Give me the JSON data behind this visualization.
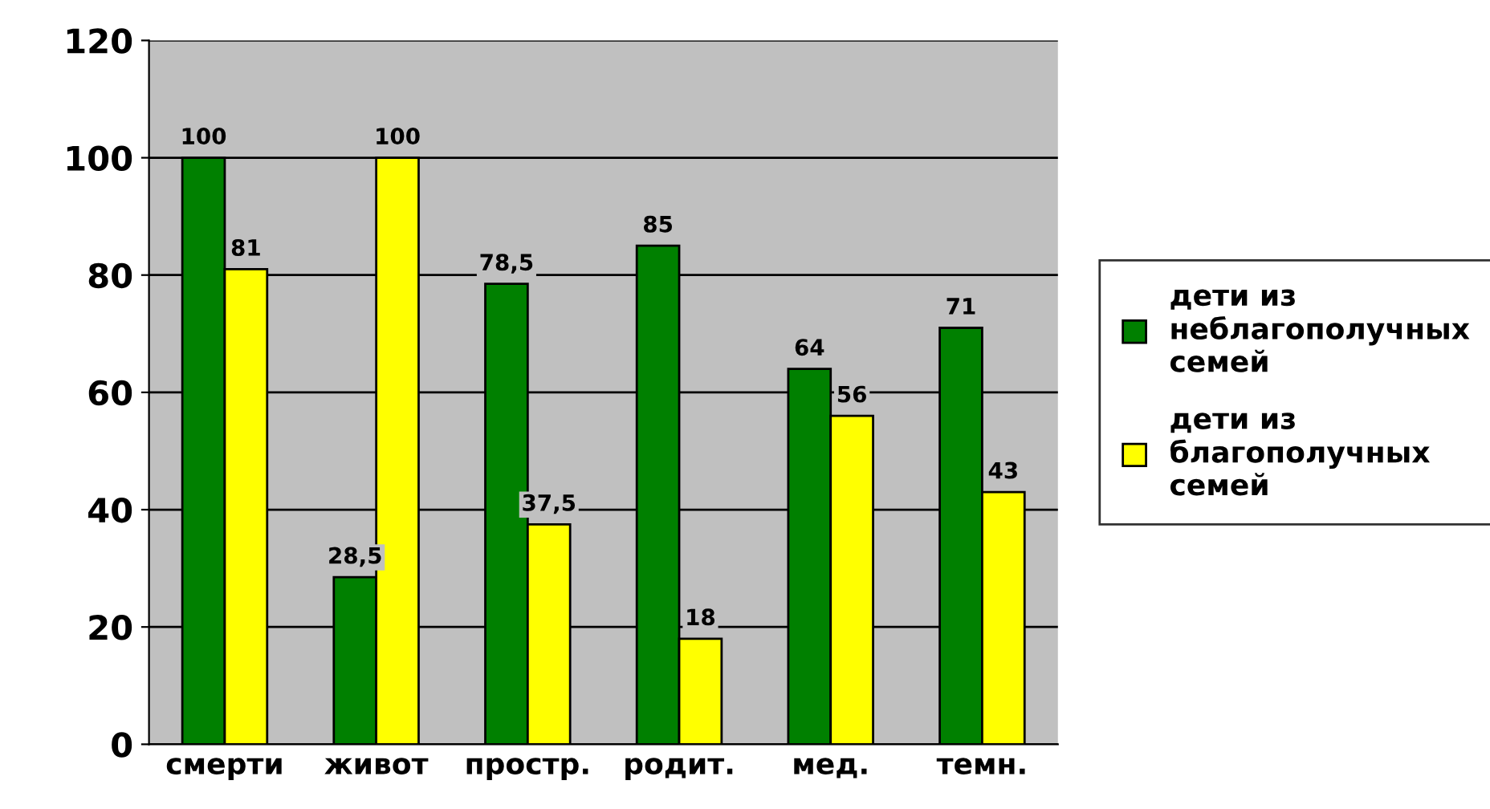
{
  "chart_data": {
    "type": "bar",
    "categories": [
      "смерти",
      "живот",
      "простр.",
      "родит.",
      "мед.",
      "темн."
    ],
    "series": [
      {
        "name": "дети из неблагополучных семей",
        "color": "#008000",
        "values": [
          100,
          28.5,
          78.5,
          85,
          64,
          71
        ],
        "value_labels": [
          "100",
          "28,5",
          "78,5",
          "85",
          "64",
          "71"
        ]
      },
      {
        "name": "дети из благополучных семей",
        "color": "#ffff00",
        "values": [
          81,
          100,
          37.5,
          18,
          56,
          43
        ],
        "value_labels": [
          "81",
          "100",
          "37,5",
          "18",
          "56",
          "43"
        ]
      }
    ],
    "ylim": [
      0,
      120
    ],
    "yticks": [
      0,
      20,
      40,
      60,
      80,
      100,
      120
    ],
    "grid": "y",
    "legend": "right"
  }
}
